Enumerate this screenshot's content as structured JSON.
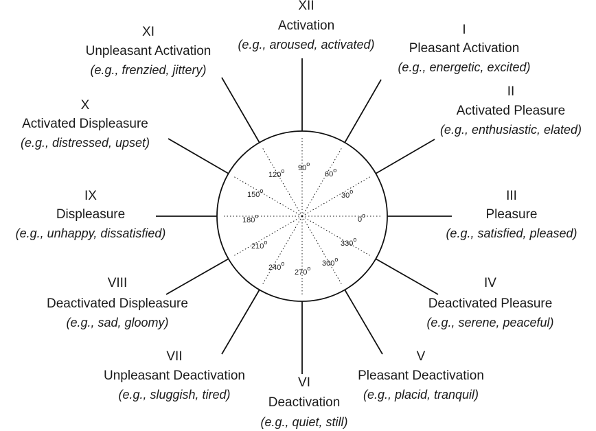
{
  "octants": [
    {
      "numeral": "XII",
      "name": "Activation",
      "examples": "(e.g., aroused, activated)"
    },
    {
      "numeral": "I",
      "name": "Pleasant Activation",
      "examples": "(e.g., energetic, excited)"
    },
    {
      "numeral": "II",
      "name": "Activated Pleasure",
      "examples": "(e.g., enthusiastic, elated)"
    },
    {
      "numeral": "III",
      "name": "Pleasure",
      "examples": "(e.g., satisfied, pleased)"
    },
    {
      "numeral": "IV",
      "name": "Deactivated Pleasure",
      "examples": "(e.g., serene, peaceful)"
    },
    {
      "numeral": "V",
      "name": "Pleasant Deactivation",
      "examples": "(e.g., placid, tranquil)"
    },
    {
      "numeral": "VI",
      "name": "Deactivation",
      "examples": "(e.g., quiet, still)"
    },
    {
      "numeral": "VII",
      "name": "Unpleasant Deactivation",
      "examples": "(e.g., sluggish, tired)"
    },
    {
      "numeral": "VIII",
      "name": "Deactivated Displeasure",
      "examples": "(e.g., sad, gloomy)"
    },
    {
      "numeral": "IX",
      "name": "Displeasure",
      "examples": "(e.g., unhappy, dissatisfied)"
    },
    {
      "numeral": "X",
      "name": "Activated Displeasure",
      "examples": "(e.g., distressed, upset)"
    },
    {
      "numeral": "XI",
      "name": "Unpleasant Activation",
      "examples": "(e.g., frenzied, jittery)"
    }
  ],
  "angles": [
    {
      "value": "0",
      "unit": "o"
    },
    {
      "value": "30",
      "unit": "o"
    },
    {
      "value": "60",
      "unit": "o"
    },
    {
      "value": "90",
      "unit": "o"
    },
    {
      "value": "120",
      "unit": "o"
    },
    {
      "value": "150",
      "unit": "o"
    },
    {
      "value": "180",
      "unit": "o"
    },
    {
      "value": "210",
      "unit": "o"
    },
    {
      "value": "240",
      "unit": "o"
    },
    {
      "value": "270",
      "unit": "o"
    },
    {
      "value": "300",
      "unit": "o"
    },
    {
      "value": "330",
      "unit": "o"
    }
  ]
}
